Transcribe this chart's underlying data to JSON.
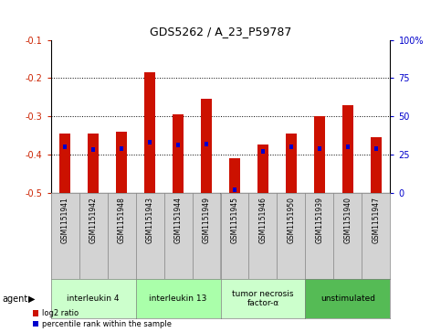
{
  "title": "GDS5262 / A_23_P59787",
  "samples": [
    "GSM1151941",
    "GSM1151942",
    "GSM1151948",
    "GSM1151943",
    "GSM1151944",
    "GSM1151949",
    "GSM1151945",
    "GSM1151946",
    "GSM1151950",
    "GSM1151939",
    "GSM1151940",
    "GSM1151947"
  ],
  "log2_ratio": [
    -0.345,
    -0.345,
    -0.34,
    -0.185,
    -0.295,
    -0.255,
    -0.41,
    -0.375,
    -0.345,
    -0.3,
    -0.27,
    -0.355
  ],
  "percentile_rank": [
    30,
    28,
    29,
    33,
    31,
    32,
    2,
    27,
    30,
    29,
    30,
    29
  ],
  "ylim_min": -0.5,
  "ylim_max": -0.1,
  "yticks": [
    -0.5,
    -0.4,
    -0.3,
    -0.2,
    -0.1
  ],
  "ytick_labels": [
    "-0.5",
    "-0.4",
    "-0.3",
    "-0.2",
    "-0.1"
  ],
  "right_ytick_pct": [
    0,
    25,
    50,
    75,
    100
  ],
  "gridline_y": [
    -0.2,
    -0.3,
    -0.4
  ],
  "agents": [
    {
      "label": "interleukin 4",
      "start": 0,
      "end": 3,
      "color": "#ccffcc"
    },
    {
      "label": "interleukin 13",
      "start": 3,
      "end": 6,
      "color": "#aaffaa"
    },
    {
      "label": "tumor necrosis\nfactor-α",
      "start": 6,
      "end": 9,
      "color": "#ccffcc"
    },
    {
      "label": "unstimulated",
      "start": 9,
      "end": 12,
      "color": "#55bb55"
    }
  ],
  "bar_color": "#cc1100",
  "pct_color": "#0000cc",
  "bg_color": "#ffffff",
  "tick_color_left": "#cc2200",
  "tick_color_right": "#0000cc",
  "sample_box_color": "#d3d3d3",
  "legend_labels": [
    "log2 ratio",
    "percentile rank within the sample"
  ],
  "bar_width": 0.4,
  "pct_bar_width": 0.15,
  "pct_bar_height": 0.012
}
